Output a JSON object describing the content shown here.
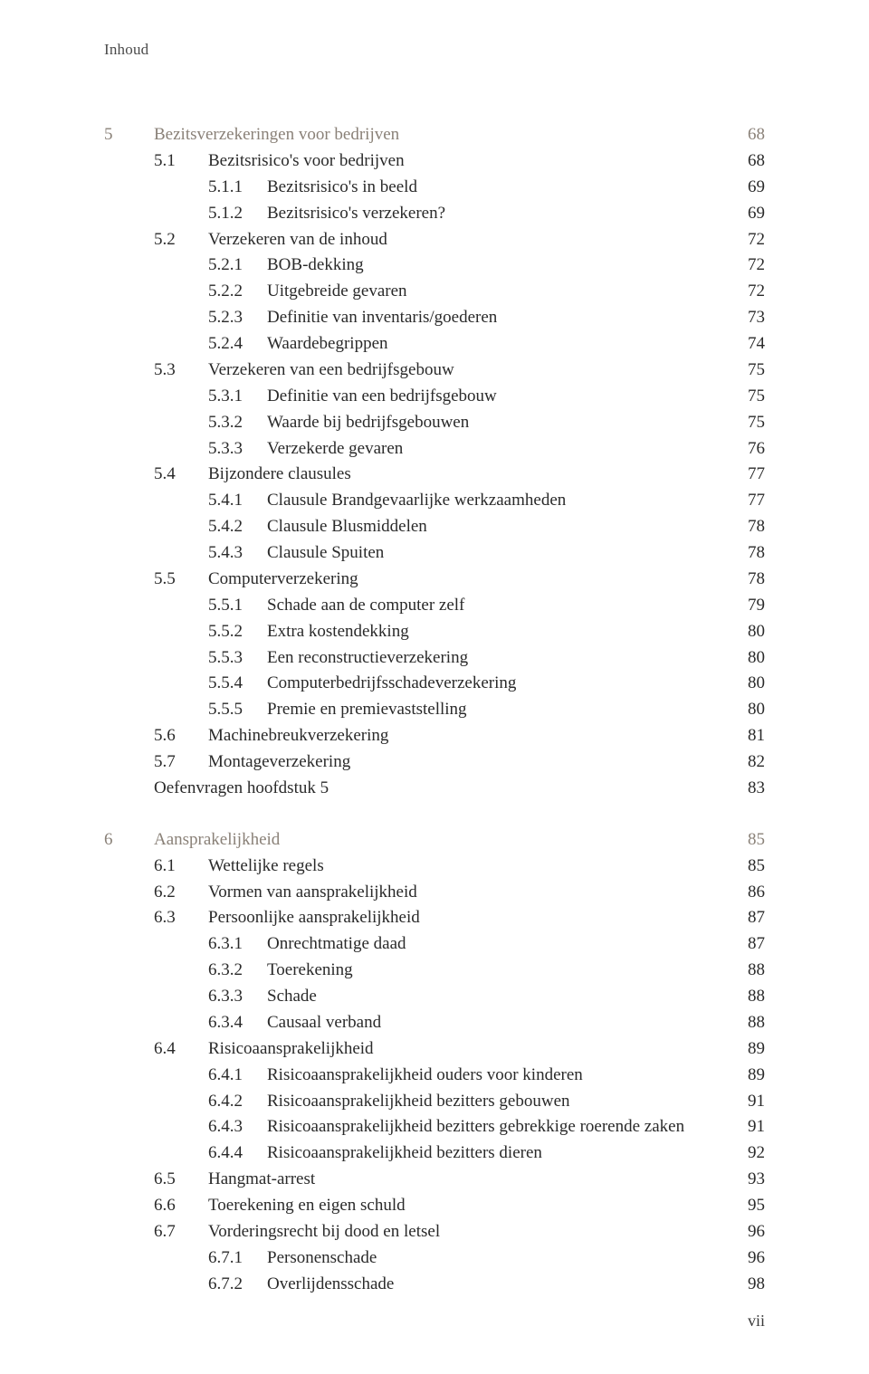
{
  "running_head": "Inhoud",
  "page_number": "vii",
  "colors": {
    "text": "#2a2a2a",
    "chapter": "#8a8178",
    "running_head": "#4a4a4a",
    "background": "#ffffff"
  },
  "typography": {
    "body_fontsize_pt": 14,
    "running_head_fontsize_pt": 12.5,
    "font_family": "Georgia, serif"
  },
  "chapters": [
    {
      "num": "5",
      "title": "Bezitsverzekeringen voor bedrijven",
      "page": "68",
      "entries": [
        {
          "type": "sec",
          "num": "5.1",
          "title": "Bezitsrisico's voor bedrijven",
          "page": "68"
        },
        {
          "type": "sub",
          "num": "5.1.1",
          "title": "Bezitsrisico's in beeld",
          "page": "69"
        },
        {
          "type": "sub",
          "num": "5.1.2",
          "title": "Bezitsrisico's verzekeren?",
          "page": "69"
        },
        {
          "type": "sec",
          "num": "5.2",
          "title": "Verzekeren van de inhoud",
          "page": "72"
        },
        {
          "type": "sub",
          "num": "5.2.1",
          "title": "BOB-dekking",
          "page": "72"
        },
        {
          "type": "sub",
          "num": "5.2.2",
          "title": "Uitgebreide gevaren",
          "page": "72"
        },
        {
          "type": "sub",
          "num": "5.2.3",
          "title": "Definitie van inventaris/goederen",
          "page": "73"
        },
        {
          "type": "sub",
          "num": "5.2.4",
          "title": "Waardebegrippen",
          "page": "74"
        },
        {
          "type": "sec",
          "num": "5.3",
          "title": "Verzekeren van een bedrijfsgebouw",
          "page": "75"
        },
        {
          "type": "sub",
          "num": "5.3.1",
          "title": "Definitie van een bedrijfsgebouw",
          "page": "75"
        },
        {
          "type": "sub",
          "num": "5.3.2",
          "title": "Waarde bij bedrijfsgebouwen",
          "page": "75"
        },
        {
          "type": "sub",
          "num": "5.3.3",
          "title": "Verzekerde gevaren",
          "page": "76"
        },
        {
          "type": "sec",
          "num": "5.4",
          "title": "Bijzondere clausules",
          "page": "77"
        },
        {
          "type": "sub",
          "num": "5.4.1",
          "title": "Clausule Brandgevaarlijke werkzaamheden",
          "page": "77"
        },
        {
          "type": "sub",
          "num": "5.4.2",
          "title": "Clausule Blusmiddelen",
          "page": "78"
        },
        {
          "type": "sub",
          "num": "5.4.3",
          "title": "Clausule Spuiten",
          "page": "78"
        },
        {
          "type": "sec",
          "num": "5.5",
          "title": "Computerverzekering",
          "page": "78"
        },
        {
          "type": "sub",
          "num": "5.5.1",
          "title": "Schade aan de computer zelf",
          "page": "79"
        },
        {
          "type": "sub",
          "num": "5.5.2",
          "title": "Extra kostendekking",
          "page": "80"
        },
        {
          "type": "sub",
          "num": "5.5.3",
          "title": "Een reconstructieverzekering",
          "page": "80"
        },
        {
          "type": "sub",
          "num": "5.5.4",
          "title": "Computerbedrijfsschadeverzekering",
          "page": "80"
        },
        {
          "type": "sub",
          "num": "5.5.5",
          "title": "Premie en premievaststelling",
          "page": "80"
        },
        {
          "type": "sec",
          "num": "5.6",
          "title": "Machinebreukverzekering",
          "page": "81"
        },
        {
          "type": "sec",
          "num": "5.7",
          "title": "Montageverzekering",
          "page": "82"
        },
        {
          "type": "plain",
          "num": "",
          "title": "Oefenvragen hoofdstuk 5",
          "page": "83"
        }
      ]
    },
    {
      "num": "6",
      "title": "Aansprakelijkheid",
      "page": "85",
      "entries": [
        {
          "type": "sec",
          "num": "6.1",
          "title": "Wettelijke regels",
          "page": "85"
        },
        {
          "type": "sec",
          "num": "6.2",
          "title": "Vormen van aansprakelijkheid",
          "page": "86"
        },
        {
          "type": "sec",
          "num": "6.3",
          "title": "Persoonlijke aansprakelijkheid",
          "page": "87"
        },
        {
          "type": "sub",
          "num": "6.3.1",
          "title": "Onrechtmatige daad",
          "page": "87"
        },
        {
          "type": "sub",
          "num": "6.3.2",
          "title": "Toerekening",
          "page": "88"
        },
        {
          "type": "sub",
          "num": "6.3.3",
          "title": "Schade",
          "page": "88"
        },
        {
          "type": "sub",
          "num": "6.3.4",
          "title": "Causaal verband",
          "page": "88"
        },
        {
          "type": "sec",
          "num": "6.4",
          "title": "Risicoaansprakelijkheid",
          "page": "89"
        },
        {
          "type": "sub",
          "num": "6.4.1",
          "title": "Risicoaansprakelijkheid ouders voor kinderen",
          "page": "89"
        },
        {
          "type": "sub",
          "num": "6.4.2",
          "title": "Risicoaansprakelijkheid bezitters gebouwen",
          "page": "91"
        },
        {
          "type": "sub",
          "num": "6.4.3",
          "title": "Risicoaansprakelijkheid bezitters gebrekkige roerende zaken",
          "page": "91"
        },
        {
          "type": "sub",
          "num": "6.4.4",
          "title": "Risicoaansprakelijkheid bezitters dieren",
          "page": "92"
        },
        {
          "type": "sec",
          "num": "6.5",
          "title": "Hangmat-arrest",
          "page": "93"
        },
        {
          "type": "sec",
          "num": "6.6",
          "title": "Toerekening en eigen schuld",
          "page": "95"
        },
        {
          "type": "sec",
          "num": "6.7",
          "title": "Vorderingsrecht bij dood en letsel",
          "page": "96"
        },
        {
          "type": "sub",
          "num": "6.7.1",
          "title": "Personenschade",
          "page": "96"
        },
        {
          "type": "sub",
          "num": "6.7.2",
          "title": "Overlijdensschade",
          "page": "98"
        }
      ]
    }
  ]
}
